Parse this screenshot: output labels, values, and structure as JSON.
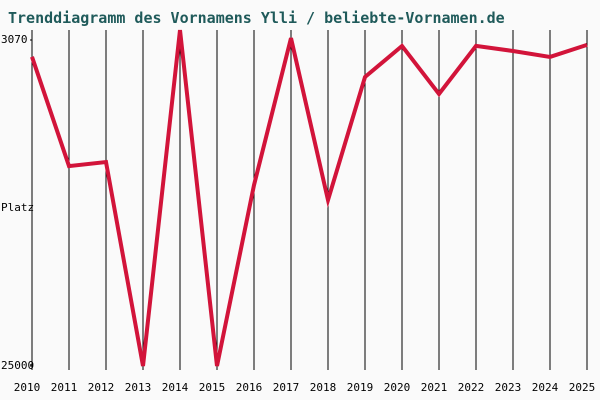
{
  "chart_data": {
    "type": "line",
    "title": "Trenddiagramm des Vornamens Ylli / beliebte-Vornamen.de",
    "y_label": "Platz",
    "categories": [
      "2010",
      "2011",
      "2012",
      "2013",
      "2014",
      "2015",
      "2016",
      "2017",
      "2018",
      "2019",
      "2020",
      "2021",
      "2022",
      "2023",
      "2024",
      "2025"
    ],
    "series": [
      {
        "name": "Ylli",
        "color": "#d2143a",
        "values": [
          4200,
          11550,
          11280,
          25000,
          2400,
          25000,
          12830,
          2940,
          13840,
          5560,
          3470,
          6700,
          3470,
          3810,
          4210,
          3400
        ]
      }
    ],
    "ylim": [
      25000,
      3070
    ],
    "yticks": [
      3070,
      25000
    ],
    "grid": true
  }
}
